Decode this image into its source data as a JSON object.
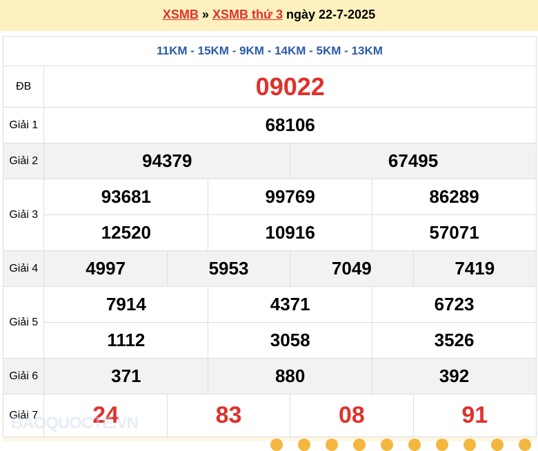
{
  "header": {
    "link1": "XSMB",
    "sep": "»",
    "link2": "XSMB thứ 3",
    "date": "ngày 22-7-2025"
  },
  "codes": "11KM - 15KM - 9KM - 14KM - 5KM - 13KM",
  "prizes": {
    "db": {
      "label": "ĐB",
      "numbers": [
        "09022"
      ]
    },
    "g1": {
      "label": "Giải 1",
      "numbers": [
        "68106"
      ]
    },
    "g2": {
      "label": "Giải 2",
      "numbers": [
        "94379",
        "67495"
      ]
    },
    "g3": {
      "label": "Giải 3",
      "numbers": [
        "93681",
        "99769",
        "86289",
        "12520",
        "10916",
        "57071"
      ]
    },
    "g4": {
      "label": "Giải 4",
      "numbers": [
        "4997",
        "5953",
        "7049",
        "7419"
      ]
    },
    "g5": {
      "label": "Giải 5",
      "numbers": [
        "7914",
        "4371",
        "6723",
        "1112",
        "3058",
        "3526"
      ]
    },
    "g6": {
      "label": "Giải 6",
      "numbers": [
        "371",
        "880",
        "392"
      ]
    },
    "g7": {
      "label": "Giải 7",
      "numbers": [
        "24",
        "83",
        "08",
        "91"
      ]
    }
  },
  "watermark": "BAOQUOCTE.VN",
  "colors": {
    "accent": "#e0312b",
    "codes": "#2b5aa8",
    "header_bg": "#fdf1c0"
  }
}
